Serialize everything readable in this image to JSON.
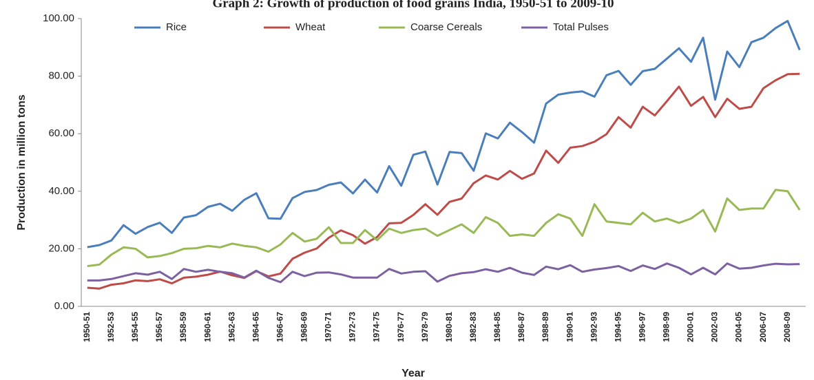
{
  "chart_data": {
    "type": "line",
    "title": "Graph 2: Growth of production of food grains India, 1950-51 to 2009-10",
    "x_label": "Year",
    "y_label": "Production in million tons",
    "categories": [
      "1950-51",
      null,
      "1952-53",
      null,
      "1954-55",
      null,
      "1956-57",
      null,
      "1958-59",
      null,
      "1960-61",
      null,
      "1962-63",
      null,
      "1964-65",
      null,
      "1966-67",
      null,
      "1968-69",
      null,
      "1970-71",
      null,
      "1972-73",
      null,
      "1974-75",
      null,
      "1976-77",
      null,
      "1978-79",
      null,
      "1980-81",
      null,
      "1982-83",
      null,
      "1984-85",
      null,
      "1986-87",
      null,
      "1988-89",
      null,
      "1990-91",
      null,
      "1992-93",
      null,
      "1994-95",
      null,
      "1996-97",
      null,
      "1998-99",
      null,
      "2000-01",
      null,
      "2002-03",
      null,
      "2004-05",
      null,
      "2006-07",
      null,
      "2008-09",
      null
    ],
    "series": [
      {
        "name": "Rice",
        "color": "#4a7ebb",
        "values": [
          20.58,
          21.3,
          22.9,
          28.21,
          25.22,
          27.56,
          29.04,
          25.53,
          30.85,
          31.68,
          34.58,
          35.66,
          33.21,
          37.0,
          39.31,
          30.59,
          30.44,
          37.61,
          39.76,
          40.43,
          42.22,
          43.07,
          39.24,
          44.05,
          39.58,
          48.74,
          41.92,
          52.67,
          53.77,
          42.33,
          53.63,
          53.25,
          47.12,
          60.1,
          58.34,
          63.83,
          60.56,
          56.86,
          70.49,
          73.57,
          74.29,
          74.68,
          72.86,
          80.3,
          81.81,
          76.98,
          81.73,
          82.54,
          86.08,
          89.68,
          84.98,
          93.34,
          71.82,
          88.53,
          83.13,
          91.79,
          93.36,
          96.69,
          99.18,
          89.09
        ]
      },
      {
        "name": "Wheat",
        "color": "#be4b48",
        "values": [
          6.46,
          6.18,
          7.5,
          8.02,
          9.04,
          8.76,
          9.4,
          7.99,
          9.96,
          10.32,
          11.0,
          12.07,
          10.78,
          9.85,
          12.26,
          10.4,
          11.39,
          16.54,
          18.65,
          20.09,
          23.83,
          26.41,
          24.74,
          21.78,
          24.1,
          28.84,
          29.01,
          31.75,
          35.51,
          31.83,
          36.31,
          37.45,
          42.79,
          45.48,
          44.07,
          47.05,
          44.32,
          46.17,
          54.11,
          49.85,
          55.14,
          55.69,
          57.21,
          59.84,
          65.77,
          62.1,
          69.35,
          66.35,
          71.29,
          76.37,
          69.68,
          72.77,
          65.76,
          72.16,
          68.64,
          69.35,
          75.81,
          78.57,
          80.68,
          80.8
        ]
      },
      {
        "name": "Coarse Cereals",
        "color": "#98b954",
        "values": [
          14,
          14.5,
          18,
          20.5,
          20,
          17,
          17.5,
          18.5,
          20,
          20.2,
          21,
          20.5,
          21.8,
          21,
          20.5,
          19,
          21.5,
          25.5,
          22.5,
          23.5,
          27.5,
          22,
          22,
          26.5,
          23,
          27,
          25.5,
          26.5,
          27,
          24.5,
          26.5,
          28.5,
          25.5,
          31,
          29,
          24.5,
          25,
          24.5,
          29,
          32,
          30.5,
          24.5,
          35.5,
          29.5,
          29,
          28.5,
          32.5,
          29.5,
          30.5,
          29,
          30.5,
          33.5,
          26,
          37.5,
          33.5,
          34,
          34,
          40.5,
          40,
          33.5
        ]
      },
      {
        "name": "Total Pulses",
        "color": "#7d60a0",
        "values": [
          9,
          9,
          9.5,
          10.5,
          11.5,
          11,
          12,
          9.5,
          13,
          12,
          12.7,
          12,
          11.5,
          10,
          12.4,
          9.9,
          8.4,
          12,
          10.5,
          11.7,
          11.8,
          11.1,
          10,
          10,
          10,
          13,
          11.4,
          12,
          12.2,
          8.6,
          10.6,
          11.5,
          11.9,
          12.9,
          12,
          13.4,
          11.7,
          10.9,
          13.8,
          12.9,
          14.3,
          12,
          12.8,
          13.3,
          14,
          12.3,
          14.2,
          13,
          14.9,
          13.4,
          11.1,
          13.4,
          11.1,
          14.9,
          13.1,
          13.4,
          14.2,
          14.8,
          14.6,
          14.7
        ]
      }
    ],
    "ylim": [
      0,
      100
    ],
    "yticks": [
      {
        "value": 0,
        "label": "0.00"
      },
      {
        "value": 20,
        "label": "20.00"
      },
      {
        "value": 40,
        "label": "40.00"
      },
      {
        "value": 60,
        "label": "60.00"
      },
      {
        "value": 80,
        "label": "80.00"
      },
      {
        "value": 100,
        "label": "100.00"
      }
    ],
    "legend": "top",
    "grid": false
  }
}
